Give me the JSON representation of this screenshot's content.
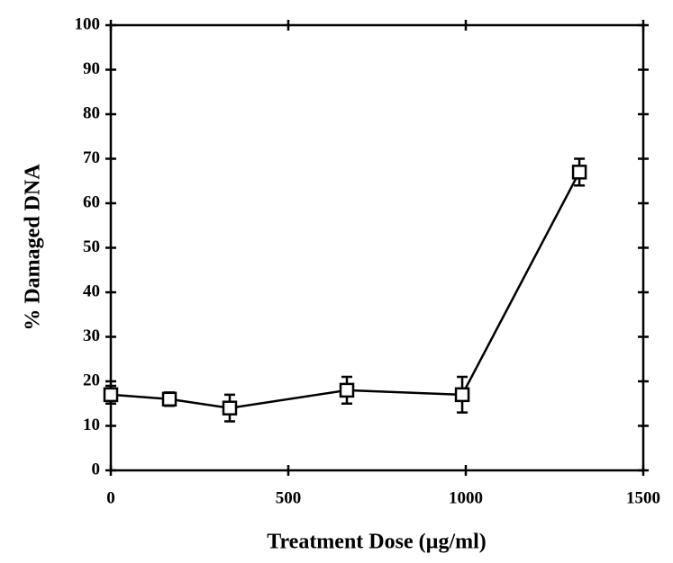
{
  "chart_data": {
    "type": "line",
    "x_label": "Treatment Dose (µg/ml)",
    "y_label": "% Damaged DNA",
    "x": [
      0,
      165,
      335,
      665,
      990,
      1320
    ],
    "series": [
      {
        "values": [
          17,
          16,
          14,
          18,
          17,
          67
        ],
        "errors": [
          2,
          1.5,
          3,
          3,
          4,
          3
        ],
        "color": "#000000"
      }
    ],
    "xlim": [
      0,
      1500
    ],
    "xticks": [
      0,
      500,
      1000,
      1500
    ],
    "ylim": [
      0,
      100
    ],
    "yticks": [
      0,
      10,
      20,
      30,
      40,
      50,
      60,
      70,
      80,
      90,
      100
    ]
  }
}
